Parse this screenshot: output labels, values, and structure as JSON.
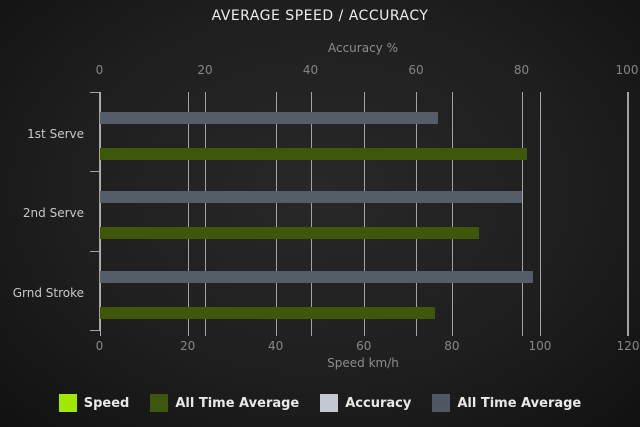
{
  "colors": {
    "background_center": "#282828",
    "background_edge": "#111111",
    "grid_line": "#b2b2b2",
    "axis_text": "#868686",
    "category_text": "#c8c8c8",
    "title_text": "#ededed",
    "legend_text": "#e8e8e8"
  },
  "chart_data": {
    "type": "bar",
    "orientation": "horizontal",
    "title": "AVERAGE SPEED / ACCURACY",
    "categories": [
      "1st Serve",
      "2nd Serve",
      "Grnd Stroke"
    ],
    "axes": {
      "top": {
        "label": "Accuracy %",
        "range": [
          0,
          100
        ],
        "ticks": [
          0,
          20,
          40,
          60,
          80,
          100
        ]
      },
      "bottom": {
        "label": "Speed km/h",
        "range": [
          0,
          120
        ],
        "ticks": [
          0,
          20,
          40,
          60,
          80,
          100,
          120
        ]
      }
    },
    "grid": true,
    "legend_position": "bottom",
    "series": [
      {
        "name": "All Time Average",
        "measure": "Accuracy",
        "axis": "top",
        "color": "#545d68",
        "values": [
          64,
          80,
          82
        ]
      },
      {
        "name": "All Time Average",
        "measure": "Speed",
        "axis": "bottom",
        "color": "#3d5808",
        "values": [
          97,
          86,
          76
        ]
      }
    ],
    "legend": [
      {
        "label": "Speed",
        "color": "#a2e800"
      },
      {
        "label": "All Time Average",
        "color": "#3d570e"
      },
      {
        "label": "Accuracy",
        "color": "#c2c9d1"
      },
      {
        "label": "All Time Average",
        "color": "#4f5763"
      }
    ]
  }
}
